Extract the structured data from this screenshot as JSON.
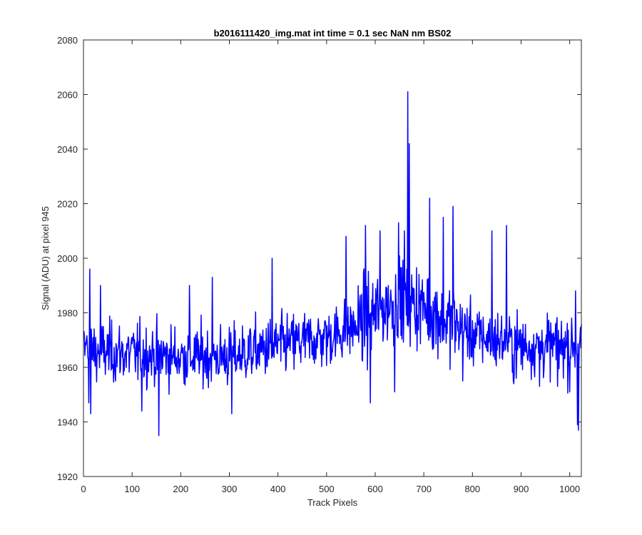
{
  "chart_data": {
    "type": "line",
    "title": "b2016111420_img.mat int time = 0.1 sec  NaN nm BS02",
    "xlabel": "Track Pixels",
    "ylabel": "Signal (ADU) at pixel 945",
    "xlim": [
      0,
      1024
    ],
    "ylim": [
      1920,
      2080
    ],
    "xticks": [
      0,
      100,
      200,
      300,
      400,
      500,
      600,
      700,
      800,
      900,
      1000
    ],
    "yticks": [
      1920,
      1940,
      1960,
      1980,
      2000,
      2020,
      2040,
      2060,
      2080
    ],
    "grid": false,
    "box": true,
    "series": [
      {
        "color": "#0000ff",
        "generator": "noisy-trace",
        "n_points": 1024,
        "baseline": [
          [
            0,
            1966
          ],
          [
            100,
            1965
          ],
          [
            200,
            1964
          ],
          [
            300,
            1964
          ],
          [
            400,
            1968
          ],
          [
            500,
            1971
          ],
          [
            560,
            1975
          ],
          [
            600,
            1980
          ],
          [
            650,
            1985
          ],
          [
            700,
            1982
          ],
          [
            760,
            1976
          ],
          [
            800,
            1972
          ],
          [
            900,
            1968
          ],
          [
            1024,
            1968
          ]
        ],
        "noise_sd": 5.5,
        "peaks": [
          [
            6,
            1970
          ],
          [
            11,
            1947
          ],
          [
            13,
            1996
          ],
          [
            15,
            1943
          ],
          [
            35,
            1990
          ],
          [
            120,
            1944
          ],
          [
            155,
            1935
          ],
          [
            218,
            1990
          ],
          [
            265,
            1993
          ],
          [
            305,
            1943
          ],
          [
            388,
            2000
          ],
          [
            540,
            2008
          ],
          [
            580,
            2012
          ],
          [
            590,
            1947
          ],
          [
            610,
            2010
          ],
          [
            640,
            1951
          ],
          [
            648,
            2013
          ],
          [
            660,
            2010
          ],
          [
            667,
            2061
          ],
          [
            668,
            1975
          ],
          [
            670,
            2042
          ],
          [
            712,
            2022
          ],
          [
            740,
            2015
          ],
          [
            760,
            2019
          ],
          [
            780,
            1955
          ],
          [
            840,
            2010
          ],
          [
            870,
            2012
          ],
          [
            885,
            1954
          ],
          [
            938,
            1953
          ],
          [
            975,
            1953
          ],
          [
            1000,
            1951
          ],
          [
            1012,
            1988
          ],
          [
            1016,
            1939
          ],
          [
            1018,
            1937
          ]
        ]
      }
    ]
  }
}
